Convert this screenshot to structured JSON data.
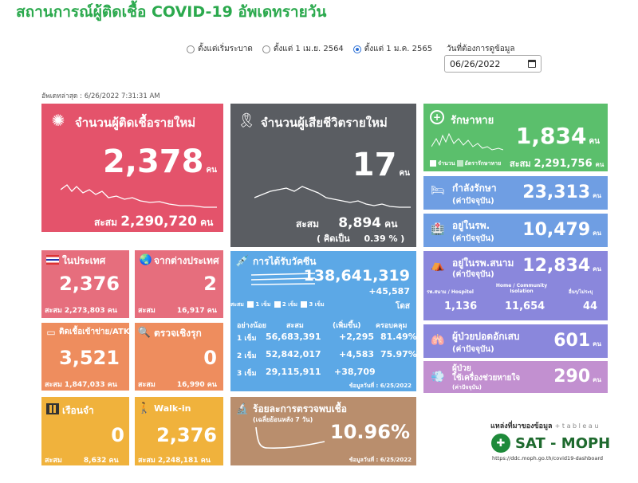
{
  "header": {
    "title": "สถานการณ์ผู้ติดเชื้อ COVID-19 อัพเดทรายวัน",
    "radios": [
      {
        "label": "ตั้งแต่เริ่มระบาด",
        "selected": false
      },
      {
        "label": "ตั้งแต่ 1 เม.ย. 2564",
        "selected": false
      },
      {
        "label": "ตั้งแต่ 1 ม.ค. 2565",
        "selected": true
      }
    ],
    "date_label": "วันที่ต้องการดูข้อมูล",
    "date_value": "06/26/2022",
    "updated": "อัพเดทล่าสุด : 6/26/2022 7:31:31 AM"
  },
  "unit": "คน",
  "cumulative_label": "สะสม",
  "new_cases": {
    "label": "จำนวนผู้ติดเชื้อรายใหม่",
    "value": "2,378",
    "cumulative": "2,290,720"
  },
  "deaths": {
    "label": "จำนวนผู้เสียชีวิตรายใหม่",
    "value": "17",
    "cumulative": "8,894",
    "pct_label": "( คิดเป็น",
    "pct": "0.39 % )"
  },
  "recovered": {
    "label": "รักษาหาย",
    "value": "1,834",
    "legend_a": "จำนวน",
    "legend_b": "อัตรารักษาหาย",
    "cumulative": "2,291,756"
  },
  "treating": {
    "label": "กำลังรักษา",
    "note": "(ค่าปัจจุบัน)",
    "value": "23,313"
  },
  "hospital": {
    "label": "อยู่ในรพ.",
    "note": "(ค่าปัจจุบัน)",
    "value": "10,479"
  },
  "field_hospital": {
    "label": "อยู่ในรพ.สนาม",
    "note": "(ค่าปัจจุบัน)",
    "value": "12,834",
    "cols": [
      {
        "label": "รพ.สนาม / Hospitel",
        "value": "1,136"
      },
      {
        "label": "Home / Community Isolation",
        "value": "11,654"
      },
      {
        "label": "อื่นๆ/ไม่ระบุ",
        "value": "44"
      }
    ]
  },
  "pneumonia": {
    "label": "ผู้ป่วยปอดอักเสบ",
    "note": "(ค่าปัจจุบัน)",
    "value": "601"
  },
  "ventilator": {
    "label1": "ผู้ป่วย",
    "label2": "ใช้เครื่องช่วยหายใจ",
    "note": "(ค่าปัจจุบัน)",
    "value": "290"
  },
  "domestic": {
    "label": "ในประเทศ",
    "value": "2,376",
    "cumulative": "2,273,803"
  },
  "abroad": {
    "label": "จากต่างประเทศ",
    "value": "2",
    "cumulative": "16,917"
  },
  "atk": {
    "label": "ติดเชื้อเข้าข่าย/ATK",
    "value": "3,521",
    "cumulative": "1,847,033"
  },
  "proactive": {
    "label": "ตรวจเชิงรุก",
    "value": "0",
    "cumulative": "16,990"
  },
  "prison": {
    "label": "เรือนจำ",
    "value": "0",
    "cumulative": "8,632"
  },
  "walkin": {
    "label": "Walk-in",
    "value": "2,376",
    "cumulative": "2,248,181"
  },
  "vaccine": {
    "label": "การได้รับวัคซีน",
    "total": "138,641,319",
    "daily": "+45,587",
    "dose_unit": "โดส",
    "legend": [
      "1 เข็ม",
      "2 เข็ม",
      "3 เข็ม"
    ],
    "headers": [
      "อย่างน้อย",
      "สะสม",
      "(เพิ่มขึ้น)",
      "ครอบคลุม"
    ],
    "rows": [
      {
        "dose": "1 เข็ม",
        "cum": "56,683,391",
        "inc": "+2,295",
        "cov": "81.49%"
      },
      {
        "dose": "2 เข็ม",
        "cum": "52,842,017",
        "inc": "+4,583",
        "cov": "75.97%"
      },
      {
        "dose": "3 เข็ม",
        "cum": "29,115,911",
        "inc": "+38,709",
        "cov": ""
      }
    ],
    "data_date": "ข้อมูลวันที่ : 6/25/2022"
  },
  "positivity": {
    "label": "ร้อยละการตรวจพบเชื้อ",
    "sub": "(เฉลี่ยย้อนหลัง 7 วัน)",
    "value": "10.96%",
    "data_date": "ข้อมูลวันที่ : 6/25/2022"
  },
  "source": {
    "label": "แหล่งที่มาของข้อมูล",
    "tableau": "+ t a b l e a u",
    "name": "SAT - MOPH",
    "url": "https://ddc.moph.go.th/covid19-dashboard"
  },
  "colors": {
    "title": "#2ba94d",
    "red": "#e4536b",
    "gray": "#5a5d62",
    "green": "#5bbf6c",
    "blue": "#6f9ee3",
    "orange": "#ee8d5e",
    "yellow": "#f0b23c"
  }
}
